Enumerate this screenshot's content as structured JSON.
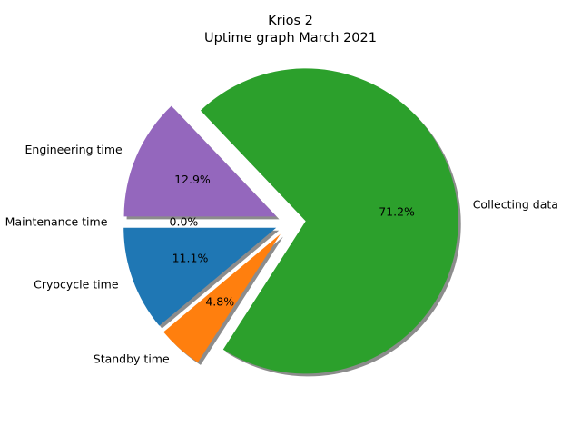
{
  "chart_data": {
    "type": "pie",
    "title_line1": "Krios 2",
    "title_line2": "Uptime graph March 2021",
    "slices": [
      {
        "label": "Cryocycle time",
        "percent_label": "11.1%",
        "value": 11.1,
        "color": "#1f77b4"
      },
      {
        "label": "Standby time",
        "percent_label": "4.8%",
        "value": 4.8,
        "color": "#ff7f0e"
      },
      {
        "label": "Collecting data",
        "percent_label": "71.2%",
        "value": 71.2,
        "color": "#2ca02c"
      },
      {
        "label": "Engineering time",
        "percent_label": "12.9%",
        "value": 12.9,
        "color": "#9467bd"
      },
      {
        "label": "Maintenance time",
        "percent_label": "0.0%",
        "value": 0.0,
        "color": "#d62728"
      }
    ],
    "start_angle_deg": 180,
    "direction": "counterclockwise",
    "exploded": true,
    "shadow": true
  }
}
